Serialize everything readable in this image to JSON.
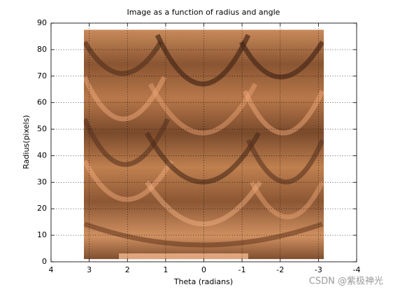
{
  "chart_data": {
    "type": "image",
    "title": "Image as a function of radius and angle",
    "xlabel": "Theta (radians)",
    "ylabel": "Radius(pixels)",
    "xlim": [
      4,
      -4
    ],
    "xticks": [
      4,
      3,
      2,
      1,
      0,
      -1,
      -2,
      -3,
      -4
    ],
    "ylim": [
      0,
      90
    ],
    "yticks": [
      0,
      10,
      20,
      30,
      40,
      50,
      60,
      70,
      80,
      90
    ],
    "image_extent": {
      "x": [
        3.14,
        -3.14
      ],
      "y": [
        1,
        87.5
      ]
    },
    "colormap": "copper",
    "grid": true,
    "watermark": "CSDN @紫极神光"
  }
}
